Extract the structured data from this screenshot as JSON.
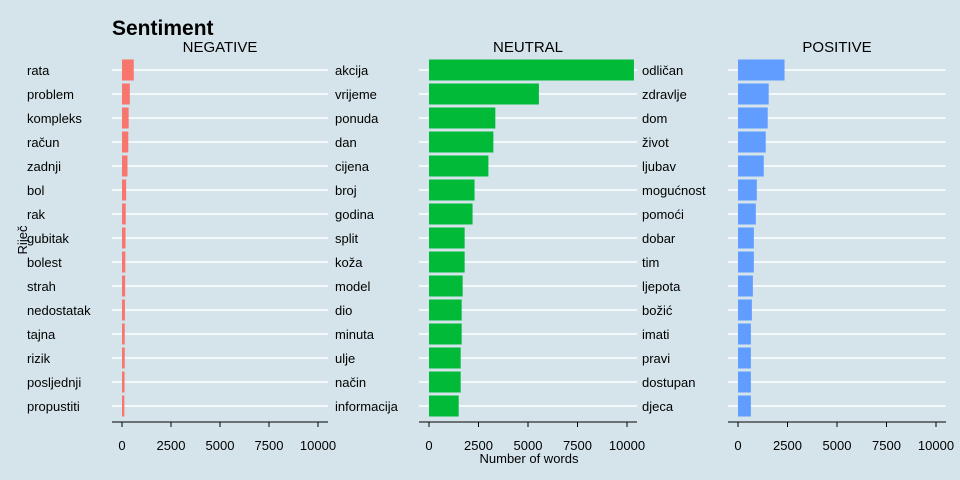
{
  "chart_data": {
    "type": "bar",
    "orientation": "horizontal",
    "title": "Sentiment",
    "xlabel": "Number of words",
    "ylabel": "Riječ",
    "xlim": [
      0,
      10000
    ],
    "xticks": [
      0,
      2500,
      5000,
      7500,
      10000
    ],
    "grid": true,
    "panels": [
      {
        "name": "NEGATIVE",
        "color": "#f8766d",
        "categories": [
          "rata",
          "problem",
          "kompleks",
          "račun",
          "zadnji",
          "bol",
          "rak",
          "gubitak",
          "bolest",
          "strah",
          "nedostatak",
          "tajna",
          "rizik",
          "posljednji",
          "propustiti"
        ],
        "values": [
          600,
          400,
          340,
          320,
          280,
          210,
          190,
          180,
          170,
          160,
          150,
          140,
          140,
          130,
          120
        ]
      },
      {
        "name": "NEUTRAL",
        "color": "#00ba38",
        "categories": [
          "akcija",
          "vrijeme",
          "ponuda",
          "dan",
          "cijena",
          "broj",
          "godina",
          "split",
          "koža",
          "model",
          "dio",
          "minuta",
          "ulje",
          "način",
          "informacija"
        ],
        "values": [
          10350,
          5550,
          3350,
          3250,
          3000,
          2300,
          2200,
          1800,
          1800,
          1700,
          1650,
          1650,
          1600,
          1600,
          1500
        ]
      },
      {
        "name": "POSITIVE",
        "color": "#619cff",
        "categories": [
          "odličan",
          "zdravlje",
          "dom",
          "život",
          "ljubav",
          "mogućnost",
          "pomoći",
          "dobar",
          "tim",
          "ljepota",
          "božić",
          "imati",
          "pravi",
          "dostupan",
          "djeca"
        ],
        "values": [
          2350,
          1550,
          1500,
          1400,
          1300,
          950,
          900,
          800,
          800,
          750,
          700,
          650,
          650,
          650,
          650
        ]
      }
    ]
  }
}
